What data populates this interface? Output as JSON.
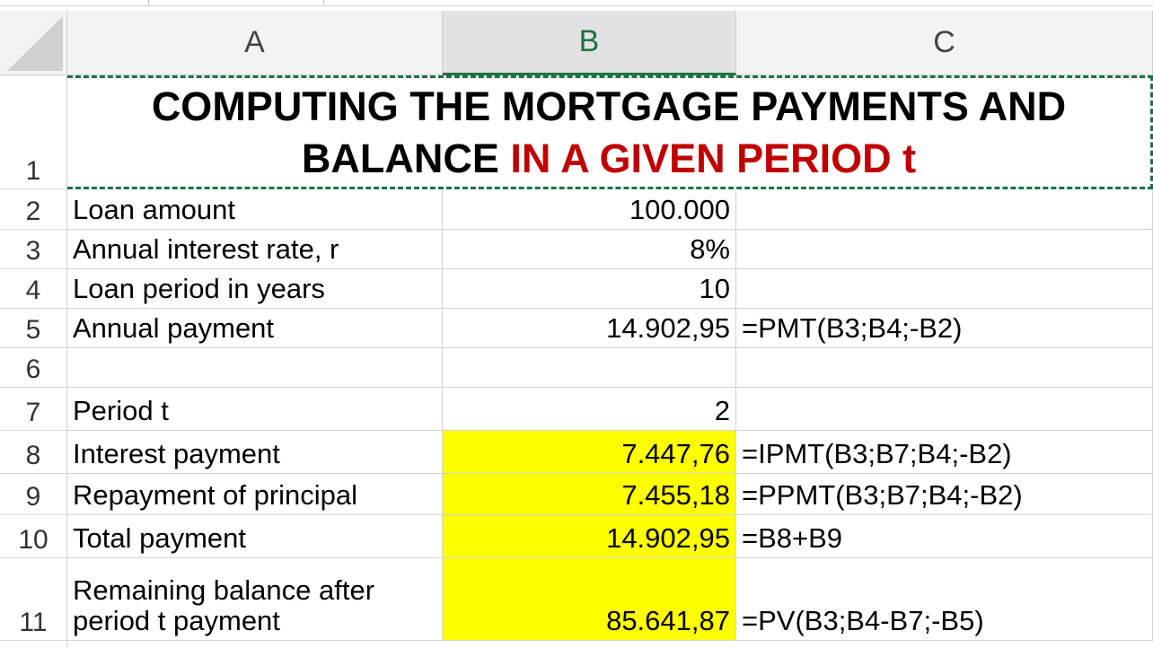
{
  "columns": [
    "A",
    "B",
    "C"
  ],
  "selected_column": "B",
  "title": {
    "part1": "COMPUTING THE MORTGAGE PAYMENTS AND BALANCE",
    "part2": "IN A GIVEN PERIOD t"
  },
  "colors": {
    "accent_green": "#1e7145",
    "title_red": "#c00000",
    "highlight_yellow": "#ffff00"
  },
  "rows": [
    {
      "num": "1",
      "a": "",
      "b": "",
      "c": ""
    },
    {
      "num": "2",
      "a": "Loan amount",
      "b": "100.000",
      "c": ""
    },
    {
      "num": "3",
      "a": "Annual interest rate, r",
      "b": "8%",
      "c": ""
    },
    {
      "num": "4",
      "a": "Loan period in years",
      "b": "10",
      "c": ""
    },
    {
      "num": "5",
      "a": "Annual payment",
      "b": "14.902,95",
      "c": "=PMT(B3;B4;-B2)"
    },
    {
      "num": "6",
      "a": "",
      "b": "",
      "c": ""
    },
    {
      "num": "7",
      "a": "Period t",
      "b": "2",
      "c": ""
    },
    {
      "num": "8",
      "a": "Interest payment",
      "b": "7.447,76",
      "c": "=IPMT(B3;B7;B4;-B2)"
    },
    {
      "num": "9",
      "a": "Repayment of principal",
      "b": "7.455,18",
      "c": "=PPMT(B3;B7;B4;-B2)"
    },
    {
      "num": "10",
      "a": "Total payment",
      "b": "14.902,95",
      "c": "=B8+B9"
    },
    {
      "num": "11",
      "a": "Remaining balance after period t payment",
      "b": "85.641,87",
      "c": "=PV(B3;B4-B7;-B5)"
    }
  ]
}
